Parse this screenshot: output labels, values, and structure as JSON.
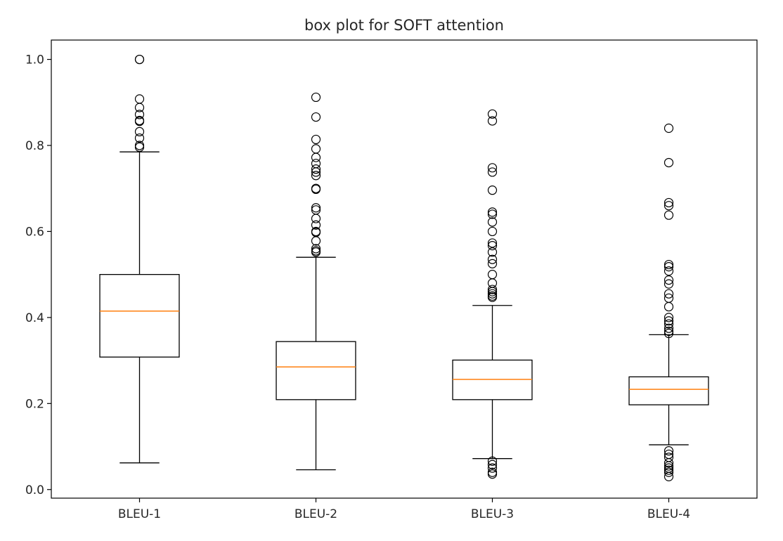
{
  "chart_data": {
    "type": "box",
    "title": "box plot for SOFT attention",
    "xlabel": "",
    "ylabel": "",
    "categories": [
      "BLEU-1",
      "BLEU-2",
      "BLEU-3",
      "BLEU-4"
    ],
    "ylim": [
      -0.02,
      1.045
    ],
    "yticks": [
      0.0,
      0.2,
      0.4,
      0.6,
      0.8,
      1.0
    ],
    "ytick_labels": [
      "0.0",
      "0.2",
      "0.4",
      "0.6",
      "0.8",
      "1.0"
    ],
    "grid": false,
    "colors": {
      "box": "#000000",
      "median": "#ff7f0e",
      "flier": "#000000"
    },
    "boxes": [
      {
        "name": "BLEU-1",
        "whisker_low": 0.062,
        "q1": 0.308,
        "median": 0.415,
        "q3": 0.5,
        "whisker_high": 0.785,
        "outliers": [
          1.0,
          1.0,
          0.908,
          0.888,
          0.872,
          0.858,
          0.856,
          0.832,
          0.817,
          0.8,
          0.796
        ]
      },
      {
        "name": "BLEU-2",
        "whisker_low": 0.046,
        "q1": 0.209,
        "median": 0.285,
        "q3": 0.344,
        "whisker_high": 0.54,
        "outliers": [
          0.912,
          0.866,
          0.814,
          0.792,
          0.772,
          0.758,
          0.745,
          0.738,
          0.73,
          0.7,
          0.698,
          0.655,
          0.65,
          0.63,
          0.615,
          0.6,
          0.598,
          0.578,
          0.56,
          0.555,
          0.552
        ]
      },
      {
        "name": "BLEU-3",
        "whisker_low": 0.072,
        "q1": 0.209,
        "median": 0.256,
        "q3": 0.301,
        "whisker_high": 0.428,
        "outliers": [
          0.873,
          0.857,
          0.748,
          0.738,
          0.696,
          0.645,
          0.64,
          0.622,
          0.6,
          0.573,
          0.567,
          0.552,
          0.535,
          0.525,
          0.5,
          0.48,
          0.465,
          0.46,
          0.455,
          0.45,
          0.447,
          0.066,
          0.058,
          0.05,
          0.04,
          0.036
        ]
      },
      {
        "name": "BLEU-4",
        "whisker_low": 0.104,
        "q1": 0.197,
        "median": 0.233,
        "q3": 0.262,
        "whisker_high": 0.36,
        "outliers": [
          0.84,
          0.76,
          0.667,
          0.66,
          0.638,
          0.523,
          0.518,
          0.508,
          0.487,
          0.478,
          0.455,
          0.445,
          0.425,
          0.4,
          0.392,
          0.385,
          0.375,
          0.368,
          0.363,
          0.09,
          0.082,
          0.075,
          0.062,
          0.055,
          0.05,
          0.045,
          0.04,
          0.03
        ]
      }
    ]
  }
}
